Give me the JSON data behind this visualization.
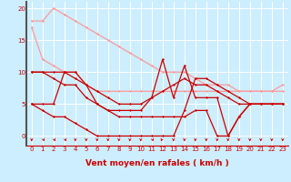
{
  "bg_color": "#cceeff",
  "grid_color": "#ffffff",
  "line_color_dark": "#cc0000",
  "line_color_light": "#ff9999",
  "xlabel": "Vent moyen/en rafales ( km/h )",
  "ylabel_ticks": [
    0,
    5,
    10,
    15,
    20
  ],
  "xlim": [
    -0.5,
    23.5
  ],
  "ylim": [
    -1.5,
    21
  ],
  "xticks": [
    0,
    1,
    2,
    3,
    4,
    5,
    6,
    7,
    8,
    9,
    10,
    11,
    12,
    13,
    14,
    15,
    16,
    17,
    18,
    19,
    20,
    21,
    22,
    23
  ],
  "light_lines": [
    [
      17,
      12,
      11,
      10,
      10,
      8,
      7,
      7,
      7,
      7,
      7,
      7,
      7,
      7,
      7,
      7,
      7,
      7,
      7,
      7,
      7,
      7,
      7,
      7
    ],
    [
      18,
      18,
      20,
      19,
      18,
      17,
      16,
      15,
      14,
      13,
      12,
      11,
      10,
      10,
      10,
      9,
      8,
      8,
      8,
      7,
      7,
      7,
      7,
      8
    ]
  ],
  "dark_lines": [
    [
      5,
      4,
      3,
      3,
      2,
      1,
      0,
      0,
      0,
      0,
      0,
      0,
      0,
      0,
      4,
      9,
      9,
      8,
      7,
      6,
      5,
      5,
      5,
      5
    ],
    [
      5,
      5,
      5,
      10,
      10,
      8,
      5,
      4,
      4,
      4,
      4,
      6,
      12,
      6,
      11,
      6,
      6,
      6,
      0,
      3,
      5,
      5,
      5,
      5
    ],
    [
      10,
      10,
      10,
      10,
      9,
      8,
      7,
      6,
      5,
      5,
      5,
      6,
      7,
      8,
      9,
      8,
      8,
      7,
      6,
      5,
      5,
      5,
      5,
      5
    ],
    [
      10,
      10,
      9,
      8,
      8,
      6,
      5,
      4,
      3,
      3,
      3,
      3,
      3,
      3,
      3,
      4,
      4,
      0,
      0,
      3,
      5,
      5,
      5,
      5
    ]
  ],
  "arrow_angles": [
    0,
    1,
    1,
    1,
    0,
    0,
    0,
    0,
    0,
    0,
    0,
    1,
    -1,
    0,
    0,
    0,
    0,
    0,
    0,
    0,
    0,
    0,
    0,
    0
  ],
  "tick_fontsize": 5,
  "xlabel_fontsize": 6.5,
  "xlabel_color": "#cc0000",
  "tick_color": "#cc0000"
}
